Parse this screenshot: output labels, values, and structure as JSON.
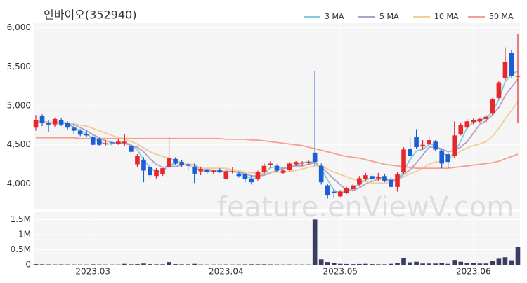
{
  "chart_data": {
    "type": "candlestick",
    "title": "인바이오(352940)",
    "watermark": "feature.enViewV.com",
    "categories": [
      null,
      null,
      null,
      null,
      null,
      null,
      null,
      null,
      null,
      "2023.03",
      null,
      null,
      null,
      null,
      null,
      null,
      null,
      null,
      null,
      null,
      null,
      null,
      null,
      null,
      null,
      null,
      null,
      null,
      null,
      null,
      "2023.04",
      null,
      null,
      null,
      null,
      null,
      null,
      null,
      null,
      null,
      null,
      null,
      null,
      null,
      null,
      null,
      null,
      null,
      "2023.05",
      null,
      null,
      null,
      null,
      null,
      null,
      null,
      null,
      null,
      null,
      null,
      null,
      null,
      null,
      null,
      null,
      null,
      null,
      null,
      null,
      "2023.06",
      null,
      null,
      null,
      null,
      null,
      null,
      null
    ],
    "open": [
      4720,
      4870,
      4780,
      4760,
      4820,
      4780,
      4720,
      4680,
      4640,
      4600,
      4570,
      4510,
      4530,
      4510,
      4520,
      4480,
      4250,
      4310,
      4210,
      4100,
      4120,
      4220,
      4320,
      4280,
      4250,
      4220,
      4160,
      4180,
      4150,
      4180,
      4060,
      4150,
      4130,
      4120,
      4060,
      4060,
      4150,
      4240,
      4230,
      4140,
      4180,
      4250,
      4260,
      4270,
      4400,
      4230,
      3980,
      3900,
      3840,
      3880,
      3930,
      3990,
      4060,
      4100,
      4070,
      4100,
      4050,
      3960,
      4150,
      4450,
      4600,
      4480,
      4510,
      4540,
      4420,
      4380,
      4360,
      4640,
      4720,
      4790,
      4800,
      4830,
      4900,
      5100,
      5350,
      5680,
      5380
    ],
    "high": [
      4880,
      4890,
      4820,
      4850,
      4840,
      4800,
      4770,
      4700,
      4680,
      4620,
      4590,
      4560,
      4550,
      4570,
      4640,
      4500,
      4380,
      4340,
      4250,
      4200,
      4200,
      4600,
      4340,
      4300,
      4270,
      4260,
      4220,
      4190,
      4180,
      4200,
      4190,
      4210,
      4160,
      4140,
      4110,
      4170,
      4260,
      4290,
      4250,
      4190,
      4280,
      4290,
      4290,
      4300,
      5450,
      4260,
      4000,
      3930,
      3920,
      3960,
      4000,
      4100,
      4140,
      4130,
      4140,
      4130,
      4090,
      4150,
      4470,
      4600,
      4700,
      4560,
      4600,
      4560,
      4440,
      4400,
      4800,
      4780,
      4830,
      4840,
      4850,
      4880,
      5100,
      5320,
      5750,
      5720,
      5920
    ],
    "low": [
      4680,
      4740,
      4660,
      4730,
      4740,
      4690,
      4640,
      4610,
      4600,
      4480,
      4480,
      4490,
      4490,
      4500,
      4480,
      4390,
      4220,
      4020,
      4060,
      4060,
      4100,
      4200,
      4240,
      4210,
      4170,
      4010,
      4110,
      4130,
      4130,
      4140,
      4050,
      4130,
      4080,
      4020,
      3990,
      4040,
      4130,
      4200,
      4150,
      4120,
      4160,
      4230,
      4230,
      4240,
      4230,
      3990,
      3810,
      3820,
      3830,
      3870,
      3900,
      3970,
      4040,
      4030,
      4040,
      4020,
      3940,
      3900,
      4120,
      4300,
      4450,
      4440,
      4480,
      4420,
      4200,
      4200,
      4330,
      4620,
      4700,
      4760,
      4780,
      4790,
      4880,
      5080,
      5330,
      5360,
      4780
    ],
    "close": [
      4820,
      4780,
      4760,
      4830,
      4760,
      4720,
      4680,
      4630,
      4620,
      4500,
      4500,
      4520,
      4520,
      4540,
      4540,
      4410,
      4360,
      4170,
      4110,
      4180,
      4200,
      4330,
      4260,
      4240,
      4230,
      4130,
      4190,
      4150,
      4170,
      4150,
      4160,
      4160,
      4100,
      4060,
      4020,
      4150,
      4230,
      4260,
      4170,
      4170,
      4260,
      4280,
      4270,
      4280,
      4280,
      4020,
      3850,
      3880,
      3900,
      3940,
      3980,
      4070,
      4110,
      4060,
      4090,
      4040,
      3960,
      4120,
      4440,
      4360,
      4470,
      4500,
      4560,
      4440,
      4260,
      4280,
      4620,
      4750,
      4800,
      4820,
      4830,
      4860,
      5080,
      5300,
      5560,
      5380,
      5380
    ],
    "up_color": "#e8262b",
    "down_color": "#1a5fd6",
    "series": [
      {
        "name": "3 MA",
        "color": "#7fcdd6",
        "values": [
          4800,
          4790,
          4790,
          4790,
          4780,
          4770,
          4720,
          4680,
          4640,
          4580,
          4540,
          4510,
          4510,
          4530,
          4530,
          4500,
          4440,
          4310,
          4210,
          4150,
          4160,
          4240,
          4260,
          4280,
          4240,
          4200,
          4180,
          4160,
          4170,
          4160,
          4160,
          4160,
          4140,
          4110,
          4060,
          4080,
          4130,
          4210,
          4220,
          4200,
          4200,
          4240,
          4270,
          4280,
          4280,
          4190,
          4050,
          3920,
          3880,
          3910,
          3940,
          4000,
          4050,
          4080,
          4090,
          4060,
          4030,
          4040,
          4170,
          4310,
          4420,
          4440,
          4510,
          4500,
          4420,
          4330,
          4390,
          4550,
          4720,
          4790,
          4820,
          4840,
          4920,
          5080,
          5310,
          5410,
          5440
        ]
      },
      {
        "name": "5 MA",
        "color": "#b59fc9",
        "values": [
          4800,
          4800,
          4790,
          4790,
          4790,
          4770,
          4760,
          4720,
          4680,
          4630,
          4590,
          4550,
          4530,
          4520,
          4520,
          4490,
          4470,
          4410,
          4320,
          4250,
          4210,
          4230,
          4220,
          4240,
          4250,
          4240,
          4200,
          4190,
          4170,
          4160,
          4160,
          4160,
          4150,
          4130,
          4100,
          4100,
          4110,
          4140,
          4170,
          4200,
          4220,
          4230,
          4230,
          4250,
          4270,
          4220,
          4140,
          4060,
          3990,
          3920,
          3910,
          3950,
          4000,
          4030,
          4060,
          4070,
          4050,
          4050,
          4120,
          4180,
          4270,
          4370,
          4470,
          4470,
          4450,
          4410,
          4430,
          4470,
          4540,
          4650,
          4760,
          4810,
          4880,
          4980,
          5130,
          5240,
          5340
        ]
      },
      {
        "name": "10 MA",
        "color": "#f3cd98",
        "values": [
          4800,
          4800,
          4790,
          4790,
          4790,
          4780,
          4770,
          4750,
          4740,
          4710,
          4680,
          4650,
          4620,
          4590,
          4570,
          4540,
          4510,
          4460,
          4410,
          4380,
          4350,
          4330,
          4300,
          4270,
          4240,
          4210,
          4200,
          4200,
          4200,
          4200,
          4200,
          4180,
          4170,
          4150,
          4140,
          4140,
          4140,
          4150,
          4150,
          4150,
          4160,
          4170,
          4190,
          4210,
          4230,
          4230,
          4190,
          4150,
          4120,
          4090,
          4060,
          4040,
          4030,
          4010,
          4010,
          4010,
          4020,
          4040,
          4090,
          4130,
          4160,
          4200,
          4250,
          4280,
          4290,
          4310,
          4360,
          4420,
          4460,
          4490,
          4510,
          4540,
          4610,
          4710,
          4830,
          4940,
          5050
        ]
      },
      {
        "name": "50 MA",
        "color": "#f5a08e",
        "values": [
          4590,
          4590,
          4590,
          4590,
          4590,
          4590,
          4590,
          4580,
          4580,
          4580,
          4580,
          4580,
          4580,
          4580,
          4580,
          4580,
          4580,
          4580,
          4580,
          4580,
          4580,
          4580,
          4580,
          4580,
          4580,
          4580,
          4580,
          4580,
          4580,
          4580,
          4570,
          4570,
          4570,
          4570,
          4560,
          4560,
          4550,
          4540,
          4530,
          4520,
          4510,
          4500,
          4490,
          4470,
          4450,
          4430,
          4410,
          4390,
          4370,
          4350,
          4340,
          4330,
          4310,
          4290,
          4270,
          4250,
          4240,
          4230,
          4220,
          4210,
          4200,
          4200,
          4200,
          4200,
          4200,
          4200,
          4210,
          4220,
          4230,
          4240,
          4250,
          4260,
          4270,
          4290,
          4320,
          4350,
          4380
        ]
      }
    ],
    "ylim": [
      3680,
      6060
    ],
    "yticks": [
      {
        "value": 4000,
        "label": "4,000"
      },
      {
        "value": 4500,
        "label": "4,500"
      },
      {
        "value": 5000,
        "label": "5,000"
      },
      {
        "value": 5500,
        "label": "5,500"
      },
      {
        "value": 6000,
        "label": "6,000"
      }
    ],
    "volume": {
      "color": "#3a3d63",
      "ylim": [
        0,
        1740000
      ],
      "yticks": [
        {
          "value": 0,
          "label": "0"
        },
        {
          "value": 500000,
          "label": "0.5M"
        },
        {
          "value": 1000000,
          "label": "1M"
        },
        {
          "value": 1500000,
          "label": "1.5M"
        }
      ],
      "values": [
        20000,
        15000,
        12000,
        10000,
        12000,
        10000,
        9000,
        8000,
        8000,
        15000,
        10000,
        8000,
        8000,
        8000,
        30000,
        15000,
        20000,
        40000,
        20000,
        15000,
        15000,
        90000,
        20000,
        15000,
        15000,
        30000,
        10000,
        8000,
        8000,
        8000,
        10000,
        8000,
        10000,
        12000,
        15000,
        15000,
        15000,
        12000,
        10000,
        8000,
        10000,
        8000,
        8000,
        8000,
        1500000,
        180000,
        90000,
        60000,
        30000,
        25000,
        20000,
        25000,
        30000,
        20000,
        15000,
        15000,
        30000,
        60000,
        220000,
        80000,
        100000,
        40000,
        40000,
        40000,
        60000,
        30000,
        160000,
        100000,
        60000,
        50000,
        40000,
        40000,
        120000,
        200000,
        250000,
        150000,
        600000
      ]
    }
  }
}
